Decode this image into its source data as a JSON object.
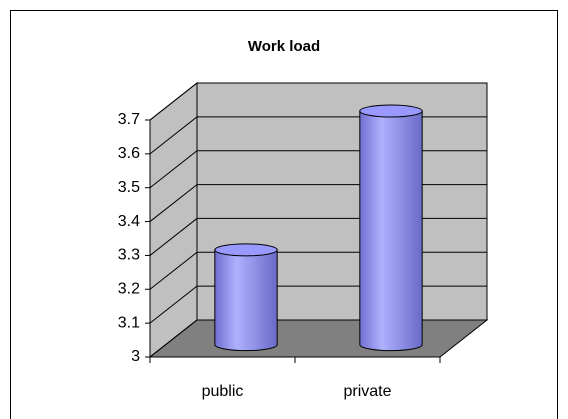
{
  "chart_data": {
    "type": "bar",
    "title": "Work load",
    "categories": [
      "public",
      "private"
    ],
    "values": [
      3.28,
      3.69
    ],
    "color": "#9999ff",
    "ylim": [
      3,
      3.7
    ],
    "yticks": [
      3,
      3.1,
      3.2,
      3.3,
      3.4,
      3.5,
      3.6,
      3.7
    ],
    "grid": true
  }
}
